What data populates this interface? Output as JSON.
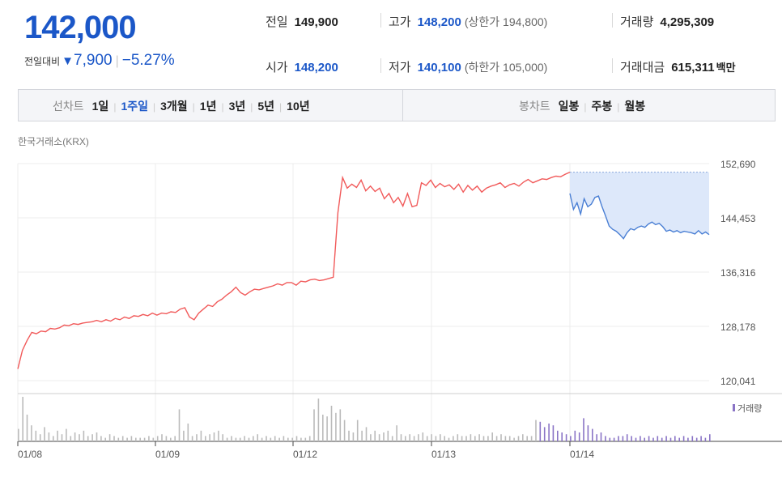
{
  "quote": {
    "price": "142,000",
    "change_label": "전일대비",
    "change_arrow": "▼",
    "change_amount": "7,900",
    "change_percent": "−5.27%"
  },
  "stats": {
    "prev_close_label": "전일",
    "prev_close": "149,900",
    "high_label": "고가",
    "high": "148,200",
    "upper_limit": "(상한가 194,800)",
    "volume_label": "거래량",
    "volume": "4,295,309",
    "open_label": "시가",
    "open": "148,200",
    "low_label": "저가",
    "low": "140,100",
    "lower_limit": "(하한가 105,000)",
    "value_label": "거래대금",
    "value": "615,311",
    "value_unit": "백만"
  },
  "tabs": {
    "line_chart_label": "선차트",
    "periods": [
      "1일",
      "1주일",
      "3개월",
      "1년",
      "3년",
      "5년",
      "10년"
    ],
    "active_period": "1주일",
    "candle_chart_label": "봉차트",
    "candles": [
      "일봉",
      "주봉",
      "월봉"
    ]
  },
  "source": "한국거래소(KRX)",
  "chart_data": {
    "type": "line",
    "x_ticks": [
      "01/08",
      "01/09",
      "01/12",
      "01/13",
      "01/14"
    ],
    "y_ticks": [
      "152,690",
      "144,453",
      "136,316",
      "128,178",
      "120,041"
    ],
    "y_range": [
      120041,
      152690
    ],
    "legend": "거래량",
    "colors": {
      "up": "#f15a5a",
      "down": "#4a7fd4",
      "fill": "#dde8fa",
      "volume": "#bbbbbb",
      "volume_today": "#8a74c6"
    },
    "series": [
      {
        "name": "",
        "values": [
          121800,
          124600,
          126100,
          127300,
          127100,
          127500,
          127400,
          127900,
          127800,
          128000,
          128400,
          128300,
          128600,
          128500,
          128700,
          128800,
          128900,
          129100,
          128900,
          129200,
          129000,
          129400,
          129200,
          129600,
          129400,
          129800,
          129700,
          130000,
          129800,
          130200,
          129900,
          130200,
          130100,
          130400,
          130300,
          130800,
          131000,
          129600,
          129200,
          130200,
          130800,
          131400,
          131200,
          131900,
          132300,
          132900,
          133400,
          134100,
          133300,
          132900,
          133400,
          133800,
          133700,
          133900,
          134100,
          134300,
          134600,
          134400,
          134800,
          134800,
          134400,
          135000,
          134900,
          135200,
          135300,
          135100,
          135200,
          135400,
          135600,
          145300,
          150600,
          149000,
          149600,
          149100,
          150200,
          148600,
          149300,
          148500,
          149000,
          147400,
          148200,
          146800,
          147600,
          146300,
          148200,
          146200,
          146400,
          149800,
          149400,
          150200,
          149100,
          149700,
          149200,
          149500,
          148800,
          149600,
          148400,
          149400,
          148700,
          149300,
          148400,
          149000,
          149300,
          149500,
          149800,
          149100,
          149500,
          149700,
          149300,
          149900,
          150300,
          149800,
          150100,
          150400,
          150300,
          150600,
          150800,
          150700,
          151100,
          151400
        ]
      },
      {
        "name": "",
        "values": [
          148200,
          145800,
          146800,
          145100,
          147400,
          146200,
          146600,
          147600,
          147800,
          146200,
          144800,
          143300,
          142800,
          142500,
          142000,
          141400,
          142300,
          142900,
          142700,
          143100,
          143300,
          143100,
          143600,
          143900,
          143500,
          143700,
          143200,
          142500,
          142700,
          142400,
          142600,
          142300,
          142500,
          142400,
          142300,
          142100,
          142600,
          142100,
          142400,
          142000
        ]
      }
    ],
    "volume": {
      "name": "거래량",
      "values": [
        7,
        25,
        15,
        9,
        6,
        4,
        8,
        5,
        3,
        6,
        4,
        7,
        3,
        5,
        4,
        6,
        3,
        4,
        5,
        3,
        2,
        4,
        3,
        2,
        3,
        2,
        3,
        2,
        2,
        2,
        3,
        2,
        3,
        4,
        3,
        2,
        3,
        18,
        6,
        10,
        3,
        4,
        6,
        3,
        4,
        5,
        6,
        4,
        2,
        3,
        2,
        2,
        3,
        2,
        3,
        4,
        2,
        3,
        2,
        3,
        2,
        3,
        2,
        2,
        3,
        2,
        2,
        3,
        18,
        24,
        15,
        14,
        20,
        16,
        18,
        12,
        6,
        5,
        12,
        6,
        8,
        4,
        6,
        4,
        5,
        6,
        3,
        9,
        4,
        3,
        4,
        3,
        4,
        5,
        3,
        4,
        3,
        4,
        3,
        2,
        3,
        4,
        3,
        3,
        4,
        3,
        4,
        3,
        3,
        5,
        3,
        4,
        3,
        3,
        2,
        3,
        4,
        3,
        3,
        12,
        11,
        8,
        10,
        9,
        6,
        5,
        4,
        3,
        6,
        5,
        13,
        9,
        7,
        4,
        5,
        3,
        2,
        2,
        3,
        3,
        4,
        3,
        2,
        3,
        2,
        3,
        2,
        3,
        2,
        3,
        2,
        3,
        2,
        3,
        2,
        3,
        2,
        3,
        2,
        4
      ]
    }
  }
}
